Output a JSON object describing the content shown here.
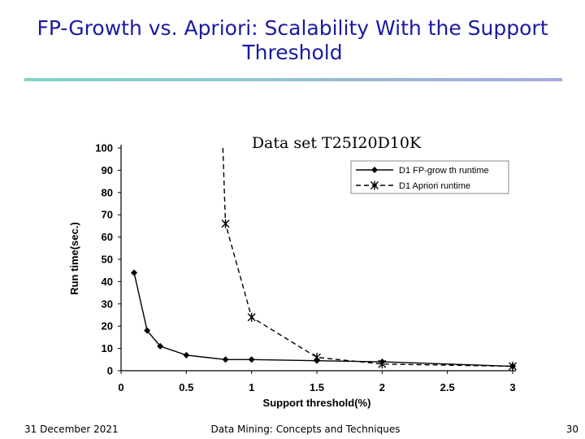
{
  "slide": {
    "title": "FP-Growth vs. Apriori: Scalability With the Support Threshold",
    "rule_colors": [
      "#7fd6c8",
      "#a8a8e0"
    ]
  },
  "footer": {
    "date": "31 December 2021",
    "course": "Data Mining: Concepts and Techniques",
    "page": "30"
  },
  "chart_data": {
    "type": "line",
    "title": "Data set T25I20D10K",
    "xlabel": "Support threshold(%)",
    "ylabel": "Run time(sec.)",
    "xlim": [
      0,
      3
    ],
    "ylim": [
      0,
      100
    ],
    "xticks": [
      "0",
      "0.5",
      "1",
      "1.5",
      "2",
      "2.5",
      "3"
    ],
    "xtick_values": [
      0,
      0.5,
      1,
      1.5,
      2,
      2.5,
      3
    ],
    "yticks": [
      "0",
      "10",
      "20",
      "30",
      "40",
      "50",
      "60",
      "70",
      "80",
      "90",
      "100"
    ],
    "ytick_values": [
      0,
      10,
      20,
      30,
      40,
      50,
      60,
      70,
      80,
      90,
      100
    ],
    "grid": false,
    "legend_position": "top-right",
    "series": [
      {
        "name": "D1 FP-grow th runtime",
        "color": "#000000",
        "line_style": "solid",
        "marker": "diamond",
        "points": [
          {
            "x": 0.1,
            "y": 44
          },
          {
            "x": 0.2,
            "y": 18
          },
          {
            "x": 0.3,
            "y": 11
          },
          {
            "x": 0.5,
            "y": 7
          },
          {
            "x": 0.8,
            "y": 5
          },
          {
            "x": 1,
            "y": 5
          },
          {
            "x": 1.5,
            "y": 4.5
          },
          {
            "x": 2,
            "y": 4
          },
          {
            "x": 3,
            "y": 2
          }
        ]
      },
      {
        "name": "D1 Apriori runtime",
        "color": "#000000",
        "line_style": "dashed",
        "marker": "asterisk",
        "points": [
          {
            "x": 0.78,
            "y": 100
          },
          {
            "x": 0.8,
            "y": 66
          },
          {
            "x": 1,
            "y": 24
          },
          {
            "x": 1.5,
            "y": 6
          },
          {
            "x": 2,
            "y": 3
          },
          {
            "x": 3,
            "y": 2
          }
        ],
        "marked_points": [
          1,
          2,
          3,
          4,
          5
        ]
      }
    ]
  }
}
